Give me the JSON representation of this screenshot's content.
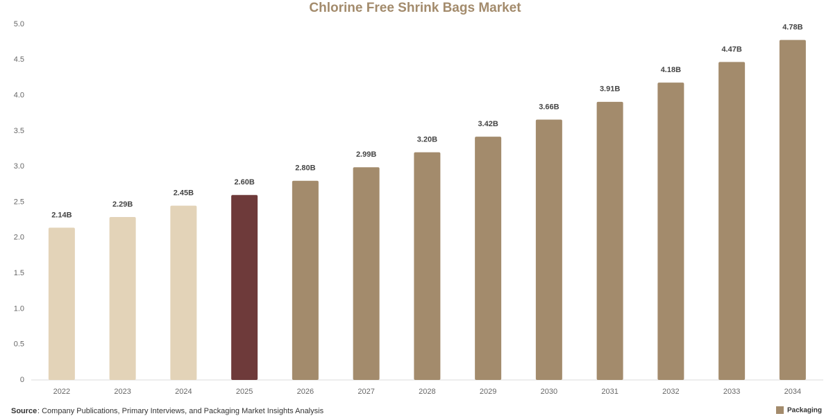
{
  "chart_data": {
    "type": "bar",
    "title": "Chlorine Free Shrink Bags Market",
    "categories": [
      "2022",
      "2023",
      "2024",
      "2025",
      "2026",
      "2027",
      "2028",
      "2029",
      "2030",
      "2031",
      "2032",
      "2033",
      "2034"
    ],
    "values": [
      2.14,
      2.29,
      2.45,
      2.6,
      2.8,
      2.99,
      3.2,
      3.42,
      3.66,
      3.91,
      4.18,
      4.47,
      4.78
    ],
    "value_labels": [
      "2.14B",
      "2.29B",
      "2.45B",
      "2.60B",
      "2.80B",
      "2.99B",
      "3.20B",
      "3.42B",
      "3.66B",
      "3.91B",
      "4.18B",
      "4.47B",
      "4.78B"
    ],
    "colors": [
      "#e3d3b8",
      "#e3d3b8",
      "#e3d3b8",
      "#6e3a3a",
      "#a38b6c",
      "#a38b6c",
      "#a38b6c",
      "#a38b6c",
      "#a38b6c",
      "#a38b6c",
      "#a38b6c",
      "#a38b6c",
      "#a38b6c"
    ],
    "ylim": [
      0,
      5
    ],
    "yticks": [
      0,
      0.5,
      {
        "value": 1,
        "label": "1.0"
      },
      1.5,
      {
        "value": 2,
        "label": "2.0"
      },
      2.5,
      {
        "value": 3,
        "label": "3.0"
      },
      3.5,
      {
        "value": 4,
        "label": "4.0"
      },
      4.5,
      {
        "value": 5,
        "label": "5.0"
      }
    ],
    "grid": false
  },
  "footer": {
    "source_label": "Source",
    "source_text": ": Company Publications, Primary Interviews, and Packaging Market Insights Analysis",
    "logo_text": "Packaging"
  }
}
